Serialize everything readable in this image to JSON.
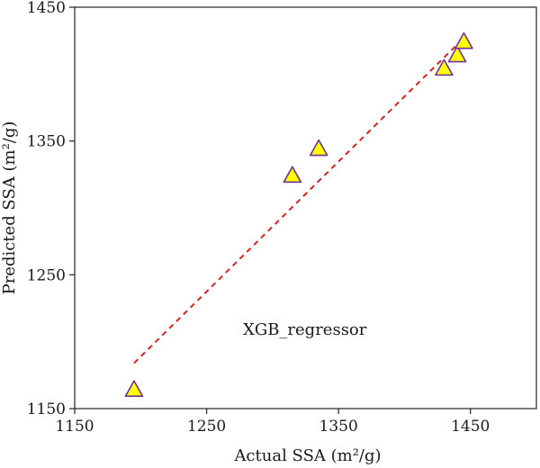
{
  "chart_data": {
    "type": "scatter",
    "title": "",
    "xlabel": "Actual SSA (m²/g)",
    "ylabel": "Predicted SSA (m²/g)",
    "xlim": [
      1150,
      1500
    ],
    "ylim": [
      1150,
      1450
    ],
    "xticks": [
      1150,
      1250,
      1350,
      1450
    ],
    "yticks": [
      1150,
      1250,
      1350,
      1450
    ],
    "xtick_labels": [
      "1150",
      "1250",
      "1350",
      "1450"
    ],
    "ytick_labels": [
      "1150",
      "1250",
      "1350",
      "1450"
    ],
    "grid": false,
    "annotation": "XGB_regressor",
    "series": [
      {
        "marker": "triangle",
        "fill_color": "#ffff00",
        "edge_color": "#7030a0",
        "points": [
          {
            "x": 1195,
            "y": 1164
          },
          {
            "x": 1315,
            "y": 1324
          },
          {
            "x": 1335,
            "y": 1344
          },
          {
            "x": 1430,
            "y": 1404
          },
          {
            "x": 1440,
            "y": 1414
          },
          {
            "x": 1445,
            "y": 1424
          }
        ]
      }
    ],
    "fit_line": {
      "style": "dashed",
      "color": "#e02020",
      "x": [
        1195,
        1445
      ],
      "y": [
        1184,
        1427
      ]
    }
  }
}
